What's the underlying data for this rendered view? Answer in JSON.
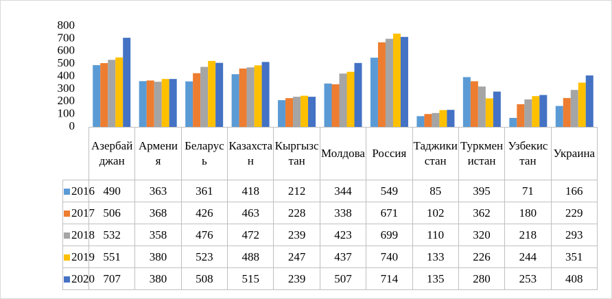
{
  "chart_data": {
    "type": "bar",
    "categories": [
      "Азербайджан",
      "Армения",
      "Беларусь",
      "Казахстан",
      "Кыргызстан",
      "Молдова",
      "Россия",
      "Таджикистан",
      "Туркменистан",
      "Узбекистан",
      "Украина"
    ],
    "series": [
      {
        "name": "2016",
        "color": "#5b9bd5",
        "values": [
          490,
          363,
          361,
          418,
          212,
          344,
          549,
          85,
          395,
          71,
          166
        ]
      },
      {
        "name": "2017",
        "color": "#ed7d31",
        "values": [
          506,
          368,
          426,
          463,
          228,
          338,
          671,
          102,
          362,
          180,
          229
        ]
      },
      {
        "name": "2018",
        "color": "#a5a5a5",
        "values": [
          532,
          358,
          476,
          472,
          239,
          423,
          699,
          110,
          320,
          218,
          293
        ]
      },
      {
        "name": "2019",
        "color": "#ffc000",
        "values": [
          551,
          380,
          523,
          488,
          247,
          437,
          740,
          133,
          226,
          244,
          351
        ]
      },
      {
        "name": "2020",
        "color": "#4472c4",
        "values": [
          707,
          380,
          508,
          515,
          239,
          507,
          714,
          135,
          280,
          253,
          408
        ]
      }
    ],
    "ylim": [
      0,
      800
    ],
    "yticks": [
      0,
      100,
      200,
      300,
      400,
      500,
      600,
      700,
      800
    ],
    "grid": false
  }
}
